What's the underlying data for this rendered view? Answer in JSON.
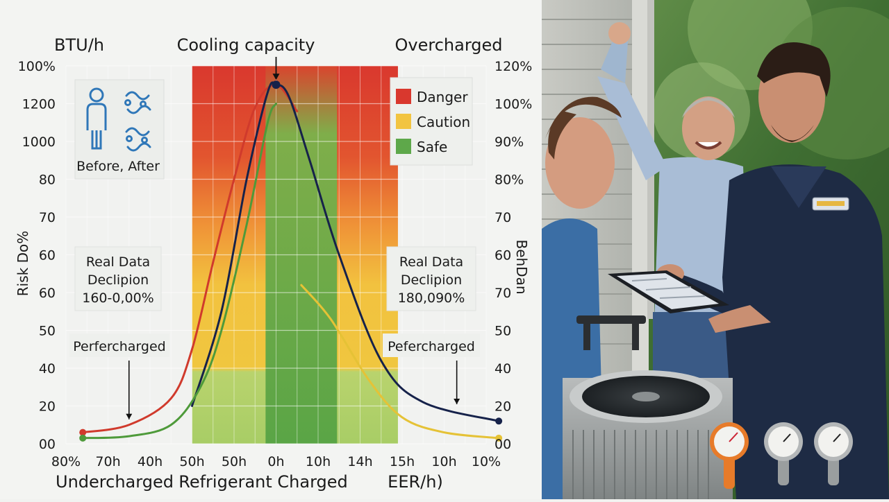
{
  "chart_data": {
    "type": "line",
    "title": "Cooling capacity",
    "left_axis_title": "BTU/h",
    "right_axis_title": "Overcharged",
    "ylabel": "Risk Do%",
    "ylabel_right": "BehDan",
    "x_tick_labels": [
      "80%",
      "70h",
      "40h",
      "50h",
      "50h",
      "0h",
      "10h",
      "14h",
      "15h",
      "10h",
      "10%"
    ],
    "y_left_tick_labels": [
      "100%",
      "1200",
      "1000",
      "80",
      "70",
      "60",
      "60",
      "50",
      "40",
      "20",
      "00"
    ],
    "y_right_tick_labels": [
      "120%",
      "100%",
      "90%",
      "80%",
      "70",
      "60",
      "70",
      "50",
      "40",
      "20",
      "00"
    ],
    "x_captions": [
      "Undercharged",
      "Refrigerant Charged",
      "EER/h)"
    ],
    "ylim": [
      0,
      100
    ],
    "grid": true,
    "legend": [
      {
        "name": "Danger",
        "color": "#d9382e"
      },
      {
        "name": "Caution",
        "color": "#f2c440"
      },
      {
        "name": "Safe",
        "color": "#5ea84a"
      }
    ],
    "legend_position": "top-right",
    "zones": [
      {
        "name": "Danger",
        "x_start": 3,
        "x_end": 7.9,
        "y_start": 70,
        "y_end": 100
      },
      {
        "name": "Caution",
        "x_start": 3,
        "x_end": 7.9,
        "y_start": 20,
        "y_end": 70
      },
      {
        "name": "Safe",
        "x_start": 3,
        "x_end": 7.9,
        "y_start": 0,
        "y_end": 20
      }
    ],
    "safe_band": {
      "x_start": 4.75,
      "x_end": 6.45,
      "y_start": 0,
      "y_end": 100
    },
    "series": [
      {
        "color": "#d03a2c",
        "start_marker": true,
        "end_marker": false,
        "points": [
          [
            0.4,
            3
          ],
          [
            1.5,
            5
          ],
          [
            2.5,
            12
          ],
          [
            3.0,
            25
          ],
          [
            3.5,
            48
          ],
          [
            4.0,
            70
          ],
          [
            4.5,
            89
          ],
          [
            5.0,
            95
          ],
          [
            5.5,
            88
          ]
        ]
      },
      {
        "color": "#16224a",
        "start_marker": false,
        "end_marker": true,
        "points": [
          [
            3.0,
            10
          ],
          [
            3.7,
            35
          ],
          [
            4.3,
            70
          ],
          [
            4.8,
            93
          ],
          [
            5.0,
            95
          ],
          [
            5.3,
            92
          ],
          [
            5.8,
            75
          ],
          [
            6.5,
            50
          ],
          [
            7.5,
            22
          ],
          [
            8.5,
            11
          ],
          [
            10.3,
            6
          ]
        ]
      },
      {
        "color": "#4e9a3a",
        "start_marker": true,
        "end_marker": false,
        "points": [
          [
            0.4,
            1.5
          ],
          [
            1.5,
            2
          ],
          [
            2.5,
            5
          ],
          [
            3.2,
            15
          ],
          [
            3.7,
            30
          ],
          [
            4.3,
            58
          ],
          [
            4.8,
            85
          ],
          [
            5.0,
            90
          ]
        ]
      },
      {
        "color": "#e5c236",
        "start_marker": false,
        "end_marker": true,
        "points": [
          [
            5.6,
            42
          ],
          [
            6.3,
            33
          ],
          [
            7.2,
            17
          ],
          [
            8.0,
            7
          ],
          [
            9.0,
            3
          ],
          [
            10.3,
            1.5
          ]
        ]
      }
    ],
    "peak": {
      "x": 5.0,
      "y": 95
    },
    "annotations": [
      {
        "lines": [
          "Real Data",
          "Declipion",
          "160-0,00%"
        ],
        "side": "left"
      },
      {
        "lines": [
          "Real Data",
          "Declipion",
          "180,090%"
        ],
        "side": "right"
      },
      {
        "text": "Perfercharged",
        "side": "left",
        "arrow_to": {
          "x": 1.5,
          "y": 5
        }
      },
      {
        "text": "Pefercharged",
        "side": "right",
        "arrow_to": {
          "x": 9.3,
          "y": 9
        }
      }
    ],
    "inset_caption": "Before, After"
  },
  "colors": {
    "danger": "#d9382e",
    "caution": "#f2c440",
    "safe": "#5ea84a",
    "icon_blue": "#2f77b8"
  },
  "photo": {
    "icon_names": [
      "gauge-orange-icon",
      "gauge-silver-icon",
      "gauge-silver-icon"
    ]
  }
}
